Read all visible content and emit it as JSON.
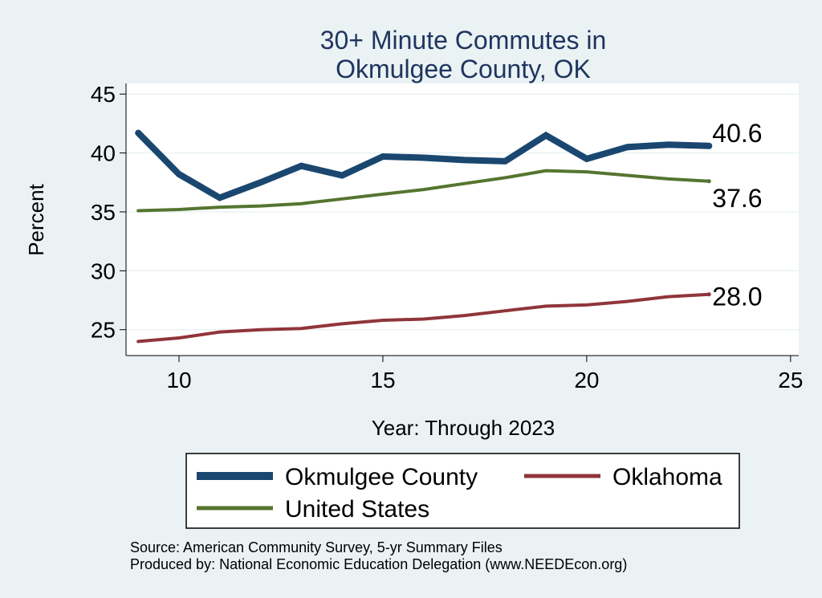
{
  "chart_data": {
    "type": "line",
    "title": [
      "30+ Minute Commutes in",
      "Okmulgee County, OK"
    ],
    "xlabel": "Year: Through 2023",
    "ylabel": "Percent",
    "xlim": [
      8.7,
      25.2
    ],
    "ylim": [
      22.8,
      45.9
    ],
    "xticks": [
      10,
      15,
      20,
      25
    ],
    "yticks": [
      25,
      30,
      35,
      40,
      45
    ],
    "grid": true,
    "legend_position": "bottom",
    "series": [
      {
        "name": "Okmulgee County",
        "color": "#1a476f",
        "x": [
          9,
          10,
          11,
          12,
          13,
          14,
          15,
          16,
          17,
          18,
          19,
          20,
          21,
          22,
          23
        ],
        "values": [
          41.7,
          38.2,
          36.2,
          37.5,
          38.9,
          38.1,
          39.7,
          39.6,
          39.4,
          39.3,
          41.5,
          39.5,
          40.5,
          40.7,
          40.6
        ],
        "end_label": "40.6"
      },
      {
        "name": "Oklahoma",
        "color": "#90353b",
        "x": [
          9,
          10,
          11,
          12,
          13,
          14,
          15,
          16,
          17,
          18,
          19,
          20,
          21,
          22,
          23
        ],
        "values": [
          24.0,
          24.3,
          24.8,
          25.0,
          25.1,
          25.5,
          25.8,
          25.9,
          26.2,
          26.6,
          27.0,
          27.1,
          27.4,
          27.8,
          28.0
        ],
        "end_label": "28.0"
      },
      {
        "name": "United States",
        "color": "#55752f",
        "x": [
          9,
          10,
          11,
          12,
          13,
          14,
          15,
          16,
          17,
          18,
          19,
          20,
          21,
          22,
          23
        ],
        "values": [
          35.1,
          35.2,
          35.4,
          35.5,
          35.7,
          36.1,
          36.5,
          36.9,
          37.4,
          37.9,
          38.5,
          38.4,
          38.1,
          37.8,
          37.6
        ],
        "end_label": "37.6"
      }
    ],
    "notes": [
      "Source: American Community Survey, 5-yr Summary Files",
      "Produced by: National Economic Education Delegation (www.NEEDEcon.org)"
    ]
  }
}
